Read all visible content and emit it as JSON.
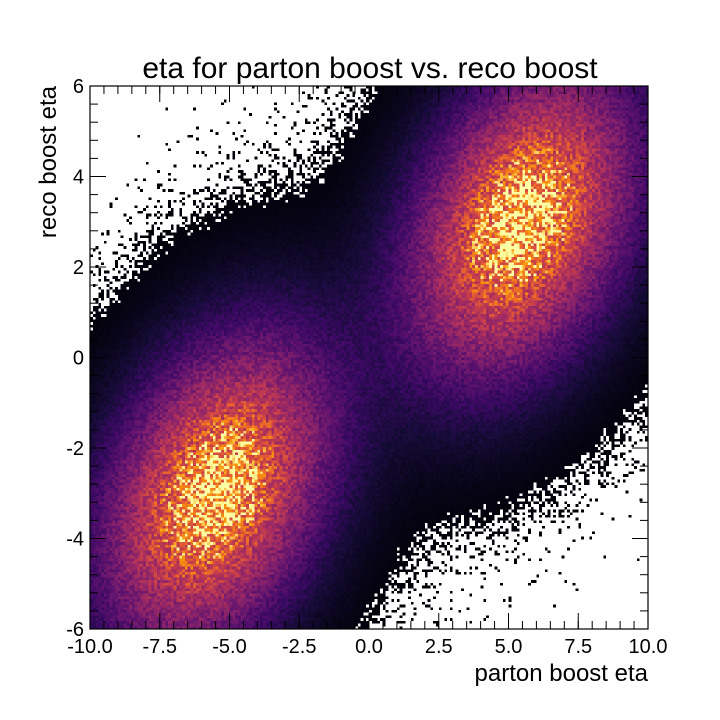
{
  "chart_data": {
    "type": "heatmap",
    "title": "eta for parton boost vs. reco boost",
    "xlabel": "parton boost eta",
    "ylabel": "reco boost eta",
    "xlim": [
      -10.0,
      10.0
    ],
    "ylim": [
      -6,
      6
    ],
    "x_ticks": [
      "-10.0",
      "-7.5",
      "-5.0",
      "-2.5",
      "0.0",
      "2.5",
      "5.0",
      "7.5",
      "10.0"
    ],
    "x_tick_values": [
      -10.0,
      -7.5,
      -5.0,
      -2.5,
      0.0,
      2.5,
      5.0,
      7.5,
      10.0
    ],
    "y_ticks": [
      "-6",
      "-4",
      "-2",
      "0",
      "2",
      "4",
      "6"
    ],
    "y_tick_values": [
      -6,
      -4,
      -2,
      0,
      2,
      4,
      6
    ],
    "grid": false,
    "colormap": "inferno",
    "empty_bin_color": "#ffffff",
    "clusters": [
      {
        "center_x": -5.5,
        "center_y": -3.0,
        "spread_x": 2.6,
        "spread_y": 2.2,
        "correlation": 0.35,
        "relative_weight": 1.0
      },
      {
        "center_x": 5.5,
        "center_y": 3.0,
        "spread_x": 2.6,
        "spread_y": 2.2,
        "correlation": 0.35,
        "relative_weight": 1.0
      }
    ]
  }
}
